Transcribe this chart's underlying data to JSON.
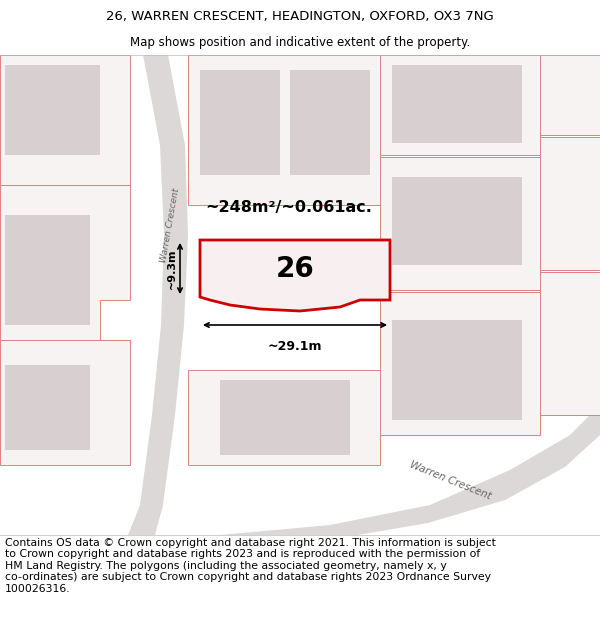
{
  "title_line1": "26, WARREN CRESCENT, HEADINGTON, OXFORD, OX3 7NG",
  "title_line2": "Map shows position and indicative extent of the property.",
  "footer_text": "Contains OS data © Crown copyright and database right 2021. This information is subject\nto Crown copyright and database rights 2023 and is reproduced with the permission of\nHM Land Registry. The polygons (including the associated geometry, namely x, y\nco-ordinates) are subject to Crown copyright and database rights 2023 Ordnance Survey\n100026316.",
  "area_label": "~248m²/~0.061ac.",
  "number_label": "26",
  "width_label": "~29.1m",
  "height_label": "~9.3m",
  "map_bg": "#f2eeee",
  "highlight_edge": "#cc0000",
  "other_plot_edge": "#e08080",
  "other_plot_fill": "#f7f3f3",
  "building_fill": "#d8d0d0",
  "road_fill": "#ddd8d8",
  "title_fontsize": 9.5,
  "subtitle_fontsize": 8.5,
  "footer_fontsize": 7.8
}
